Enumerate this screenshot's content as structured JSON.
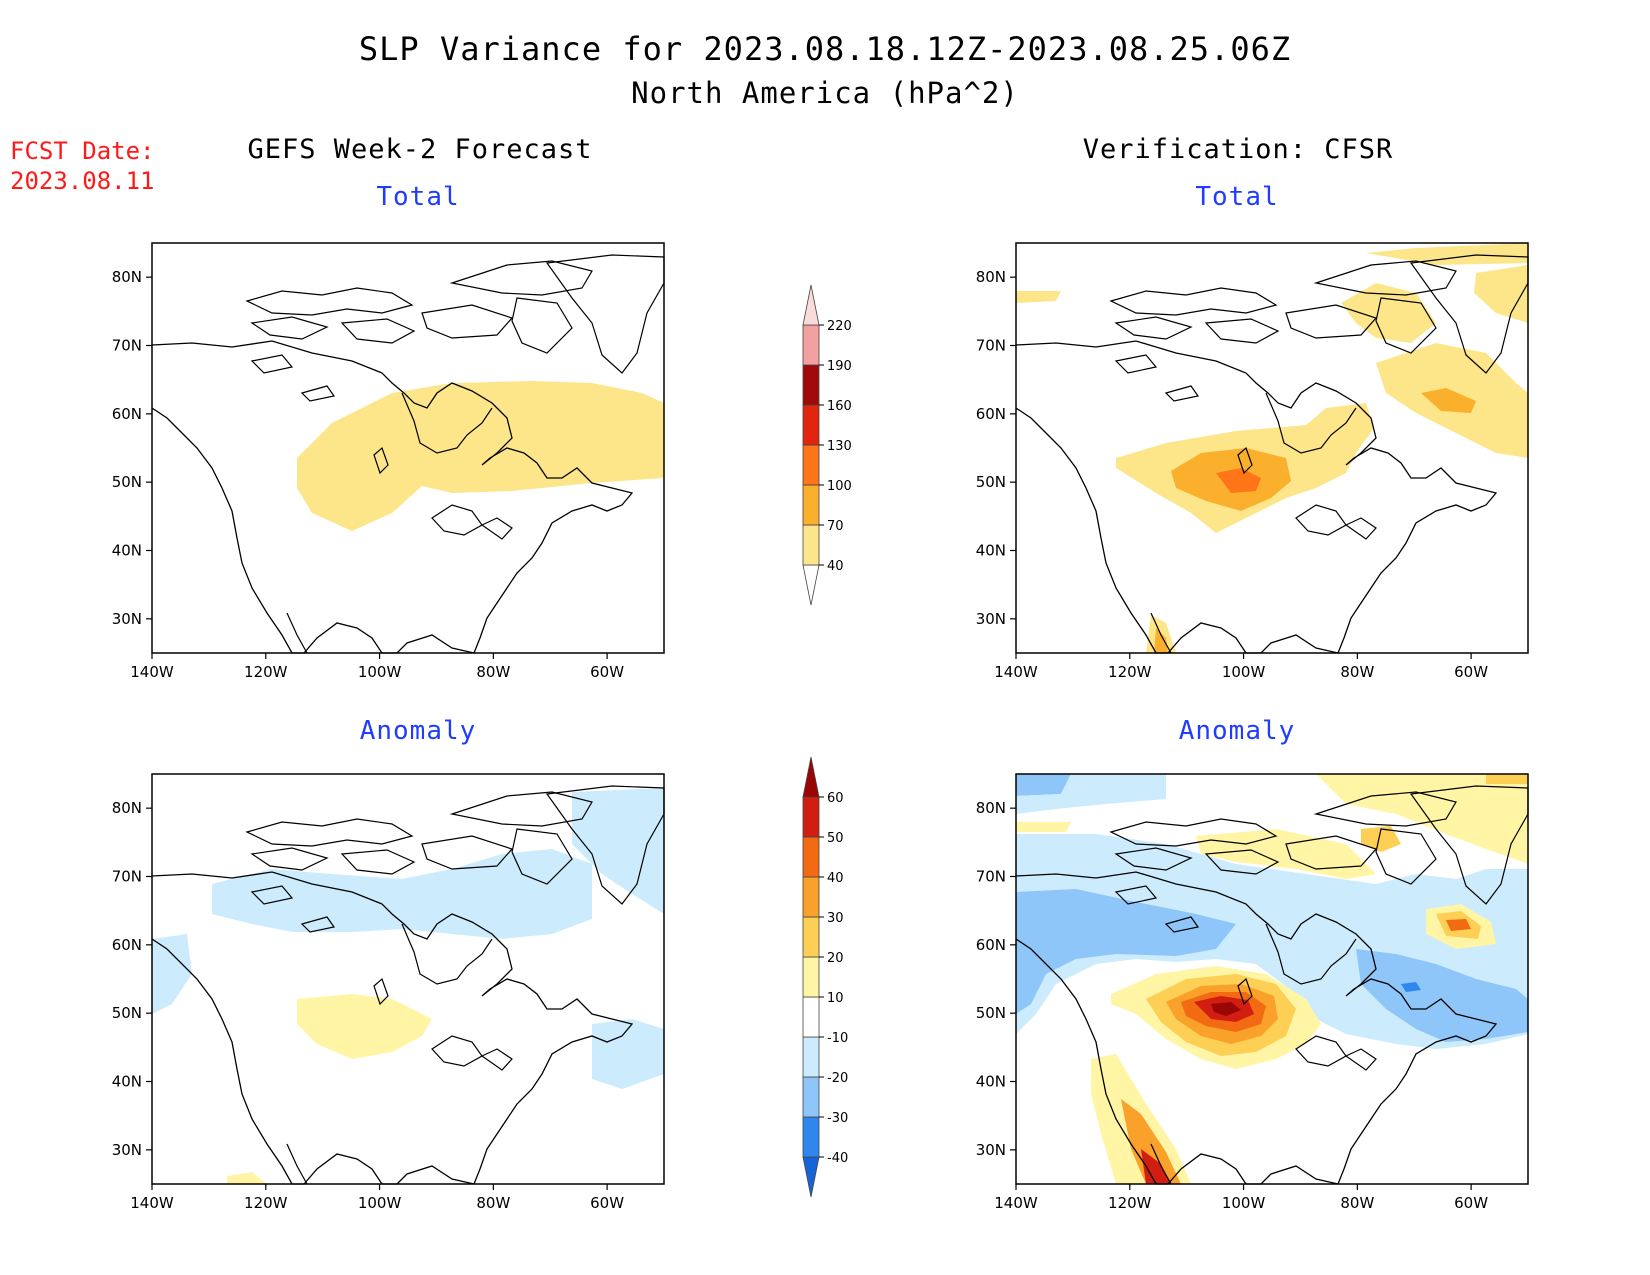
{
  "title": "SLP Variance for 2023.08.18.12Z-2023.08.25.06Z",
  "subtitle": "North America (hPa^2)",
  "fcst_date_label": "FCST Date:",
  "fcst_date_value": "2023.08.11",
  "columns": {
    "left": "GEFS Week-2 Forecast",
    "right": "Verification: CFSR"
  },
  "panel_titles": {
    "top_left": "Total",
    "top_right": "Total",
    "bottom_left": "Anomaly",
    "bottom_right": "Anomaly"
  },
  "axes": {
    "lat_labels": [
      "80N",
      "70N",
      "60N",
      "50N",
      "40N",
      "30N"
    ],
    "lat_values": [
      80,
      70,
      60,
      50,
      40,
      30
    ],
    "lon_labels": [
      "140W",
      "120W",
      "100W",
      "80W",
      "60W"
    ],
    "lon_values": [
      -140,
      -120,
      -100,
      -80,
      -60
    ],
    "lon_range": [
      -140,
      -50
    ],
    "lat_range": [
      25,
      85
    ]
  },
  "colorbar_total": {
    "levels": [
      "40",
      "70",
      "100",
      "130",
      "160",
      "190",
      "220"
    ],
    "colors": [
      "#ffffff",
      "#fde68a",
      "#fbb02d",
      "#ff7518",
      "#e2250f",
      "#a10a0a",
      "#f2a0a0",
      "#fbdada"
    ]
  },
  "colorbar_anomaly": {
    "levels": [
      "-40",
      "-30",
      "-20",
      "-10",
      "10",
      "20",
      "30",
      "40",
      "50",
      "60"
    ],
    "colors": [
      "#1565d8",
      "#2f86ee",
      "#8fc6fa",
      "#ccecfd",
      "#ffffff",
      "#fff5a5",
      "#fdcf55",
      "#f9a12a",
      "#f26a12",
      "#d21e10",
      "#9a0505"
    ]
  },
  "colors": {
    "light_yellow": "#fde68a",
    "orange": "#fbb02d",
    "dark_orange": "#ff7518",
    "red": "#d21e10",
    "dark_red": "#9a0505",
    "light_blue": "#ccecfd",
    "blue": "#8fc6fa",
    "mid_blue": "#2f86ee",
    "anom_yellow": "#fff5a5",
    "fcst_red": "#ff1a1a",
    "title_blue": "#1f3cff"
  }
}
